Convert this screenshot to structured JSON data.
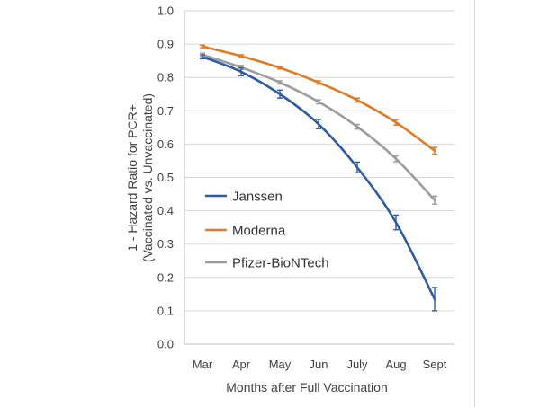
{
  "chart_data": {
    "type": "line",
    "title": "",
    "xlabel": "Months after Full Vaccination",
    "ylabel": [
      "1 - Hazard Ratio for PCR+",
      "(Vaccinated vs. Unvaccinated)"
    ],
    "categories": [
      "Mar",
      "Apr",
      "May",
      "Jun",
      "July",
      "Aug",
      "Sept"
    ],
    "ylim": [
      0.0,
      1.0
    ],
    "yticks": [
      "0.0",
      "0.1",
      "0.2",
      "0.3",
      "0.4",
      "0.5",
      "0.6",
      "0.7",
      "0.8",
      "0.9",
      "1.0"
    ],
    "grid": "horizontal",
    "legend_position": "left-lower",
    "series": [
      {
        "name": "Janssen",
        "color": "#2e5aa7",
        "values": [
          0.862,
          0.817,
          0.75,
          0.66,
          0.53,
          0.365,
          0.135
        ],
        "error": [
          0.006,
          0.012,
          0.012,
          0.014,
          0.016,
          0.022,
          0.035
        ]
      },
      {
        "name": "Moderna",
        "color": "#e07b25",
        "values": [
          0.893,
          0.864,
          0.829,
          0.785,
          0.732,
          0.665,
          0.58
        ],
        "error": [
          0.004,
          0.004,
          0.004,
          0.005,
          0.006,
          0.008,
          0.01
        ]
      },
      {
        "name": "Pfizer-BioNTech",
        "color": "#9c9c9c",
        "values": [
          0.868,
          0.83,
          0.785,
          0.727,
          0.652,
          0.556,
          0.432
        ],
        "error": [
          0.005,
          0.006,
          0.005,
          0.006,
          0.007,
          0.009,
          0.012
        ]
      }
    ]
  }
}
